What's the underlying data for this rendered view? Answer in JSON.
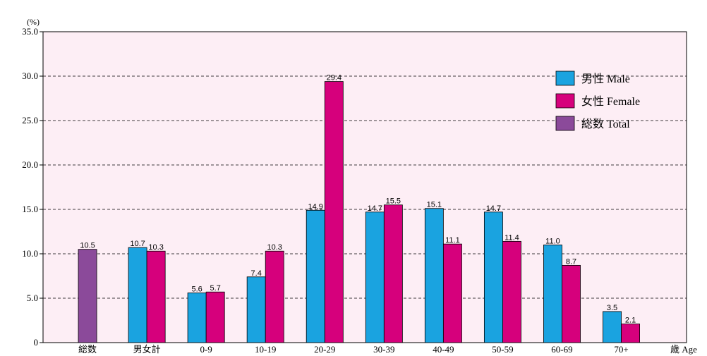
{
  "chart_data": {
    "type": "bar",
    "y_unit_label": "(%)",
    "x_unit_label": "歳 Age",
    "ylim": [
      0,
      35
    ],
    "y_ticks": [
      "0",
      "5.0",
      "10.0",
      "15.0",
      "20.0",
      "25.0",
      "30.0",
      "35.0"
    ],
    "grid": true,
    "legend_position": "top-right",
    "categories": [
      "総数",
      "男女計",
      "0-9",
      "10-19",
      "20-29",
      "30-39",
      "40-49",
      "50-59",
      "60-69",
      "70+"
    ],
    "series": [
      {
        "name": "男性 Male",
        "color": "#1aa3e0",
        "values": [
          null,
          10.7,
          5.6,
          7.4,
          14.9,
          14.7,
          15.1,
          14.7,
          11.0,
          3.5
        ],
        "labels": [
          null,
          "10.7",
          "5.6",
          "7.4",
          "14.9",
          "14.7",
          "15.1",
          "14.7",
          "11.0",
          "3.5"
        ]
      },
      {
        "name": "女性 Female",
        "color": "#d6007c",
        "values": [
          null,
          10.3,
          5.7,
          10.3,
          29.4,
          15.5,
          11.1,
          11.4,
          8.7,
          2.1
        ],
        "labels": [
          null,
          "10.3",
          "5.7",
          "10.3",
          "29.4",
          "15.5",
          "11.1",
          "11.4",
          "8.7",
          "2.1"
        ]
      },
      {
        "name": "総数 Total",
        "color": "#8b4a9a",
        "values": [
          10.5,
          null,
          null,
          null,
          null,
          null,
          null,
          null,
          null,
          null
        ],
        "labels": [
          "10.5",
          null,
          null,
          null,
          null,
          null,
          null,
          null,
          null,
          null
        ]
      }
    ],
    "plot_background": "#fdeef5"
  }
}
